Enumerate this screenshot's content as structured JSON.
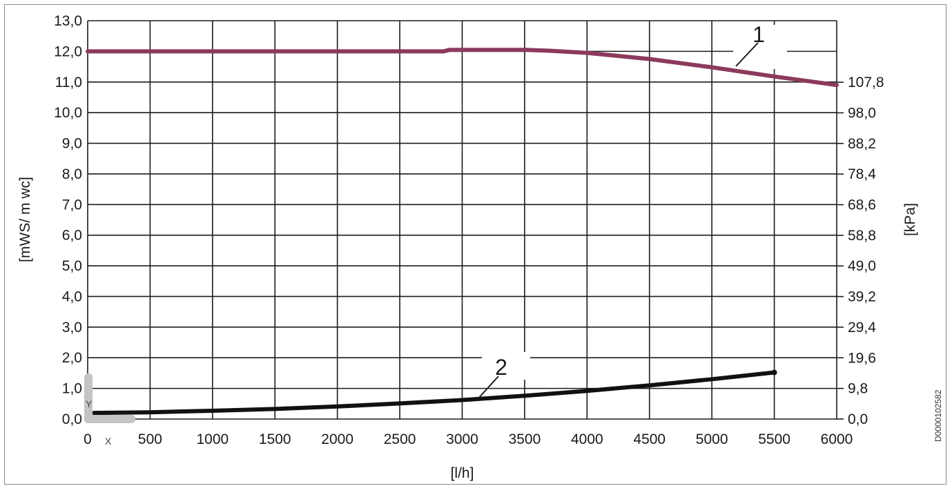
{
  "document_id": "D0000102582",
  "chart_data": {
    "type": "line",
    "xlabel": "[l/h]",
    "ylabel": "[mWS/ m wc]",
    "y2label": "[kPa]",
    "xlim": [
      0,
      6000
    ],
    "ylim": [
      0,
      13
    ],
    "x_ticks": [
      "0",
      "500",
      "1000",
      "1500",
      "2000",
      "2500",
      "3000",
      "3500",
      "4000",
      "4500",
      "5000",
      "5500",
      "6000"
    ],
    "y_ticks": [
      "0,0",
      "1,0",
      "2,0",
      "3,0",
      "4,0",
      "5,0",
      "6,0",
      "7,0",
      "8,0",
      "9,0",
      "10,0",
      "11,0",
      "12,0",
      "13,0"
    ],
    "y2_ticks": [
      "0,0",
      "9,8",
      "19,6",
      "29,4",
      "39,2",
      "49,0",
      "58,8",
      "68,6",
      "78,4",
      "88,2",
      "98,0",
      "107,8"
    ],
    "grid": true,
    "series": [
      {
        "name": "1",
        "color": "#8c3a5c",
        "x": [
          0,
          500,
          1000,
          1500,
          2000,
          2500,
          2850,
          2900,
          3000,
          3500,
          3700,
          4000,
          4500,
          5000,
          5500,
          6000
        ],
        "y": [
          12.0,
          12.0,
          12.0,
          12.0,
          12.0,
          12.0,
          12.0,
          12.05,
          12.05,
          12.05,
          12.02,
          11.95,
          11.75,
          11.48,
          11.18,
          10.9
        ]
      },
      {
        "name": "2",
        "color": "#111111",
        "x": [
          50,
          500,
          1000,
          1500,
          2000,
          2500,
          3000,
          3500,
          4000,
          4500,
          5000,
          5500
        ],
        "y": [
          0.2,
          0.22,
          0.27,
          0.33,
          0.41,
          0.51,
          0.62,
          0.76,
          0.92,
          1.1,
          1.3,
          1.52
        ]
      }
    ],
    "axis_marker": {
      "y_label": "Y",
      "x_label": "X"
    }
  }
}
